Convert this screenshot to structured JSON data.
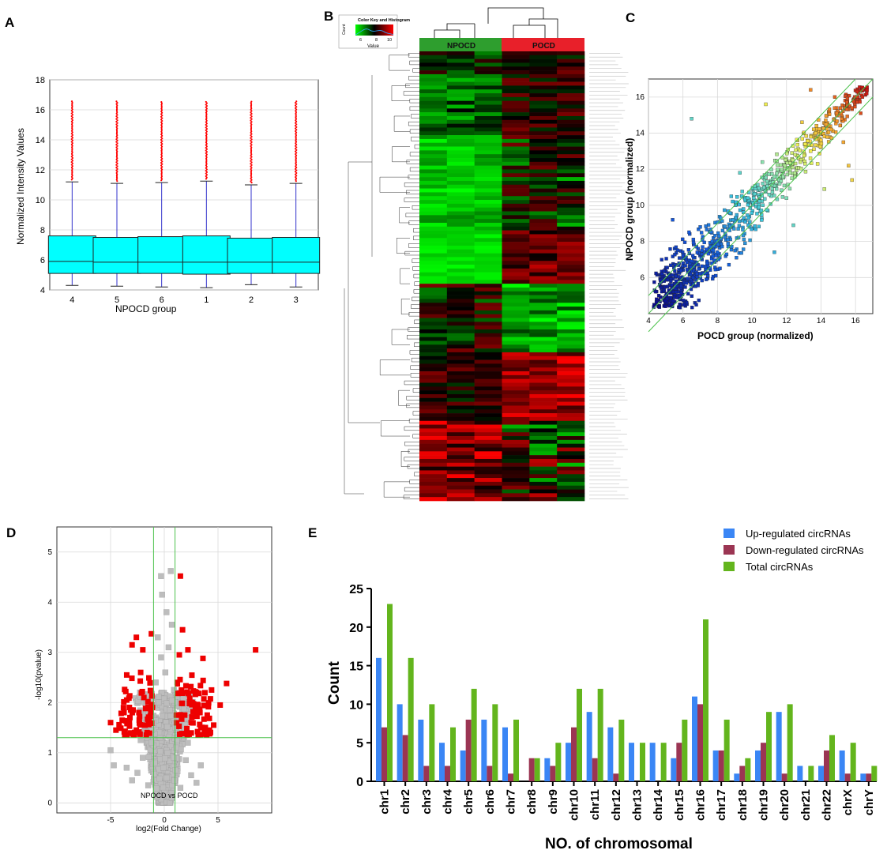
{
  "panels": {
    "A": "A",
    "B": "B",
    "C": "C",
    "D": "D",
    "E": "E"
  },
  "colors": {
    "box": "#00FFFF",
    "outlier": "#FF0000",
    "whisker": "#3333CC",
    "up": "#3A86F5",
    "down": "#9B3553",
    "total": "#63B51D",
    "heat_high": "#FF0000",
    "heat_low": "#00FF00",
    "npocd_bar": "#2E9E2E",
    "pocd_bar": "#E8202A",
    "guide": "#4CC24C",
    "volcano_sig": "#EE0000",
    "volcano_ns": "#BDBDBD"
  },
  "chart_data": [
    {
      "id": "A",
      "type": "box",
      "title": "",
      "xlabel": "NPOCD group",
      "ylabel": "Normalized Intensity Values",
      "ylim": [
        4,
        18
      ],
      "yticks": [
        "4",
        "6",
        "8",
        "10",
        "12",
        "14",
        "16",
        "18"
      ],
      "categories": [
        "4",
        "5",
        "6",
        "1",
        "2",
        "3"
      ],
      "boxes": [
        {
          "min": 4.3,
          "q1": 5.1,
          "median": 5.9,
          "q3": 7.6,
          "max": 11.2,
          "outlier_max": 16.6
        },
        {
          "min": 4.25,
          "q1": 5.1,
          "median": 5.85,
          "q3": 7.5,
          "max": 11.1,
          "outlier_max": 16.6
        },
        {
          "min": 4.2,
          "q1": 5.1,
          "median": 5.85,
          "q3": 7.55,
          "max": 11.15,
          "outlier_max": 16.6
        },
        {
          "min": 4.15,
          "q1": 5.05,
          "median": 5.85,
          "q3": 7.6,
          "max": 11.25,
          "outlier_max": 16.6
        },
        {
          "min": 4.35,
          "q1": 5.1,
          "median": 5.85,
          "q3": 7.45,
          "max": 11.0,
          "outlier_max": 16.6
        },
        {
          "min": 4.2,
          "q1": 5.1,
          "median": 5.85,
          "q3": 7.5,
          "max": 11.1,
          "outlier_max": 16.6
        }
      ]
    },
    {
      "id": "B",
      "type": "heatmap",
      "groups": [
        "NPOCD",
        "POCD"
      ],
      "color_key_title": "Color Key and Histogram",
      "color_key_ticks": [
        "6",
        "8",
        "10"
      ],
      "color_key_xlabel": "Value",
      "color_key_ylabel": "Count",
      "samples_per_group": 3,
      "rows": 118,
      "value_range": [
        4,
        12
      ],
      "blocks": [
        {
          "row_end": 0.05,
          "npocd": [
            6,
            9
          ],
          "pocd": [
            7,
            10
          ]
        },
        {
          "row_end": 0.19,
          "npocd": [
            5,
            8
          ],
          "pocd": [
            7,
            10
          ]
        },
        {
          "row_end": 0.4,
          "npocd": [
            4,
            6
          ],
          "pocd": [
            5,
            10
          ]
        },
        {
          "row_end": 0.52,
          "npocd": [
            4,
            5
          ],
          "pocd": [
            8,
            11
          ]
        },
        {
          "row_end": 0.67,
          "npocd": [
            6,
            10
          ],
          "pocd": [
            4,
            7
          ]
        },
        {
          "row_end": 0.82,
          "npocd": [
            7,
            10
          ],
          "pocd": [
            9,
            12
          ]
        },
        {
          "row_end": 1.0,
          "npocd": [
            8,
            12
          ],
          "pocd": [
            5,
            11
          ]
        }
      ]
    },
    {
      "id": "C",
      "type": "scatter",
      "xlabel": "POCD group (normalized)",
      "ylabel": "NPOCD group (normalized)",
      "xlim": [
        4,
        17
      ],
      "ylim": [
        4,
        17
      ],
      "xticks": [
        "4",
        "6",
        "8",
        "10",
        "12",
        "14",
        "16"
      ],
      "yticks": [
        "6",
        "8",
        "10",
        "12",
        "14",
        "16"
      ],
      "guide_lines": "y=x and fold-change 2 boundaries",
      "points": [
        [
          4.6,
          5.0
        ],
        [
          5.0,
          4.7
        ],
        [
          5.3,
          5.8
        ],
        [
          5.6,
          5.2
        ],
        [
          5.9,
          6.4
        ],
        [
          6.2,
          5.7
        ],
        [
          6.5,
          6.9
        ],
        [
          6.8,
          6.2
        ],
        [
          7.1,
          7.5
        ],
        [
          7.4,
          6.8
        ],
        [
          7.7,
          8.0
        ],
        [
          8.0,
          7.4
        ],
        [
          8.3,
          8.6
        ],
        [
          8.6,
          8.1
        ],
        [
          8.9,
          9.2
        ],
        [
          9.2,
          8.7
        ],
        [
          9.5,
          9.8
        ],
        [
          9.8,
          9.3
        ],
        [
          10.1,
          10.4
        ],
        [
          10.4,
          9.9
        ],
        [
          10.7,
          11.0
        ],
        [
          11.0,
          10.6
        ],
        [
          11.3,
          11.6
        ],
        [
          11.6,
          11.2
        ],
        [
          11.9,
          12.2
        ],
        [
          12.2,
          11.8
        ],
        [
          12.5,
          12.8
        ],
        [
          12.8,
          12.4
        ],
        [
          13.1,
          13.4
        ],
        [
          13.4,
          13.0
        ],
        [
          13.7,
          14.0
        ],
        [
          14.0,
          13.6
        ],
        [
          14.3,
          14.5
        ],
        [
          14.6,
          14.2
        ],
        [
          14.9,
          15.1
        ],
        [
          15.2,
          14.8
        ],
        [
          15.5,
          15.7
        ],
        [
          15.8,
          15.4
        ],
        [
          16.1,
          16.3
        ],
        [
          16.4,
          16.0
        ],
        [
          6.5,
          14.8
        ],
        [
          10.8,
          15.6
        ],
        [
          13.4,
          16.4
        ],
        [
          15.8,
          11.4
        ],
        [
          15.6,
          12.2
        ],
        [
          14.2,
          10.9
        ],
        [
          12.4,
          8.9
        ],
        [
          9.3,
          11.8
        ],
        [
          5.4,
          9.2
        ],
        [
          11.3,
          7.4
        ],
        [
          4.8,
          6.2
        ],
        [
          5.1,
          5.5
        ],
        [
          5.5,
          4.9
        ],
        [
          6.0,
          7.2
        ],
        [
          6.3,
          5.1
        ],
        [
          7.0,
          8.8
        ],
        [
          7.9,
          6.1
        ],
        [
          8.8,
          10.5
        ],
        [
          9.6,
          7.9
        ],
        [
          10.6,
          12.4
        ],
        [
          12.0,
          10.4
        ],
        [
          12.9,
          14.6
        ],
        [
          13.8,
          12.3
        ],
        [
          14.8,
          16.0
        ],
        [
          15.3,
          13.5
        ],
        [
          16.3,
          15.1
        ],
        [
          4.9,
          5.3
        ],
        [
          5.2,
          6.1
        ],
        [
          5.8,
          5.0
        ],
        [
          6.6,
          6.0
        ]
      ]
    },
    {
      "id": "D",
      "type": "scatter",
      "subtype": "volcano",
      "annotation": "NPOCD vs POCD",
      "xlabel": "log2(Fold Change)",
      "ylabel": "-log10(pvalue)",
      "xlim": [
        -10,
        10
      ],
      "ylim": [
        -0.2,
        5.5
      ],
      "xticks": [
        "-5",
        "0",
        "5"
      ],
      "yticks": [
        "0",
        "1",
        "2",
        "3",
        "4",
        "5"
      ],
      "fc_threshold": [
        -1,
        1
      ],
      "p_threshold": 1.3,
      "significant": [
        [
          8.5,
          3.05
        ],
        [
          1.5,
          4.52
        ],
        [
          1.7,
          3.45
        ],
        [
          -1.2,
          3.37
        ],
        [
          -2.6,
          3.3
        ],
        [
          -3.0,
          3.15
        ],
        [
          -2.0,
          3.05
        ],
        [
          2.2,
          3.05
        ],
        [
          3.6,
          2.88
        ],
        [
          1.4,
          2.95
        ],
        [
          -5.0,
          1.6
        ],
        [
          -4.5,
          1.45
        ],
        [
          5.8,
          2.38
        ],
        [
          4.4,
          2.25
        ],
        [
          3.0,
          2.2
        ],
        [
          2.6,
          2.0
        ],
        [
          -3.5,
          2.05
        ],
        [
          -2.2,
          2.6
        ],
        [
          -1.9,
          2.1
        ],
        [
          -3.8,
          1.9
        ],
        [
          1.9,
          1.75
        ],
        [
          2.5,
          1.6
        ],
        [
          3.4,
          1.5
        ],
        [
          4.0,
          1.75
        ],
        [
          4.6,
          1.55
        ],
        [
          3.1,
          1.42
        ],
        [
          -1.8,
          1.55
        ],
        [
          -2.6,
          1.45
        ],
        [
          -3.2,
          1.7
        ],
        [
          -1.6,
          1.4
        ],
        [
          5.2,
          1.95
        ],
        [
          4.2,
          1.45
        ],
        [
          1.6,
          2.25
        ],
        [
          2.9,
          1.82
        ],
        [
          -2.9,
          1.85
        ],
        [
          -1.4,
          1.65
        ],
        [
          -2.3,
          1.72
        ],
        [
          2.1,
          1.48
        ],
        [
          1.2,
          2.4
        ],
        [
          -1.1,
          1.9
        ]
      ],
      "nonsignificant": [
        [
          -5.0,
          1.05
        ],
        [
          -4.7,
          0.75
        ],
        [
          -0.3,
          4.52
        ],
        [
          0.6,
          4.62
        ],
        [
          -0.2,
          4.15
        ],
        [
          0.2,
          3.8
        ],
        [
          0.7,
          3.55
        ],
        [
          -0.6,
          3.3
        ],
        [
          0.4,
          3.1
        ],
        [
          -0.3,
          2.9
        ],
        [
          0.1,
          2.6
        ],
        [
          -0.8,
          2.4
        ],
        [
          0.9,
          2.25
        ],
        [
          -0.5,
          2.0
        ],
        [
          0.5,
          1.85
        ],
        [
          -1.2,
          1.2
        ],
        [
          1.1,
          1.1
        ],
        [
          -2.0,
          0.9
        ],
        [
          2.0,
          0.85
        ],
        [
          -2.5,
          0.6
        ],
        [
          2.5,
          0.55
        ],
        [
          -3.0,
          0.45
        ],
        [
          3.0,
          0.4
        ],
        [
          -1.5,
          0.35
        ],
        [
          1.5,
          0.3
        ],
        [
          0.0,
          0.2
        ],
        [
          -0.7,
          0.12
        ],
        [
          0.7,
          0.1
        ],
        [
          -3.5,
          0.7
        ],
        [
          3.4,
          0.75
        ],
        [
          -1.0,
          1.6
        ],
        [
          1.0,
          1.5
        ],
        [
          -0.4,
          1.3
        ],
        [
          0.3,
          1.0
        ],
        [
          -0.1,
          0.7
        ],
        [
          0.2,
          0.5
        ],
        [
          -2.2,
          1.25
        ],
        [
          2.2,
          1.2
        ],
        [
          -0.9,
          0.8
        ],
        [
          0.9,
          0.9
        ]
      ]
    },
    {
      "id": "E",
      "type": "bar",
      "xlabel": "NO. of chromosomal",
      "ylabel": "Count",
      "ylim": [
        0,
        25
      ],
      "yticks": [
        "0",
        "5",
        "10",
        "15",
        "20",
        "25"
      ],
      "categories": [
        "chr1",
        "chr2",
        "chr3",
        "chr4",
        "chr5",
        "chr6",
        "chr7",
        "chr8",
        "chr9",
        "chr10",
        "chr11",
        "chr12",
        "chr13",
        "chr14",
        "chr15",
        "chr16",
        "chr17",
        "chr18",
        "chr19",
        "chr20",
        "chr21",
        "chr22",
        "chrX",
        "chrY"
      ],
      "series": [
        {
          "name": "Up-regulated circRNAs",
          "values": [
            16,
            10,
            8,
            5,
            4,
            8,
            7,
            0,
            3,
            5,
            9,
            7,
            5,
            5,
            3,
            11,
            4,
            1,
            4,
            9,
            2,
            2,
            4,
            1
          ]
        },
        {
          "name": "Down-regulated circRNAs",
          "values": [
            7,
            6,
            2,
            2,
            8,
            2,
            1,
            3,
            2,
            7,
            3,
            1,
            0,
            0,
            5,
            10,
            4,
            2,
            5,
            1,
            0,
            4,
            1,
            1
          ]
        },
        {
          "name": "Total circRNAs",
          "values": [
            23,
            16,
            10,
            7,
            12,
            10,
            8,
            3,
            5,
            12,
            12,
            8,
            5,
            5,
            8,
            21,
            8,
            3,
            9,
            10,
            2,
            6,
            5,
            2
          ]
        }
      ],
      "legend": "top-right"
    }
  ]
}
